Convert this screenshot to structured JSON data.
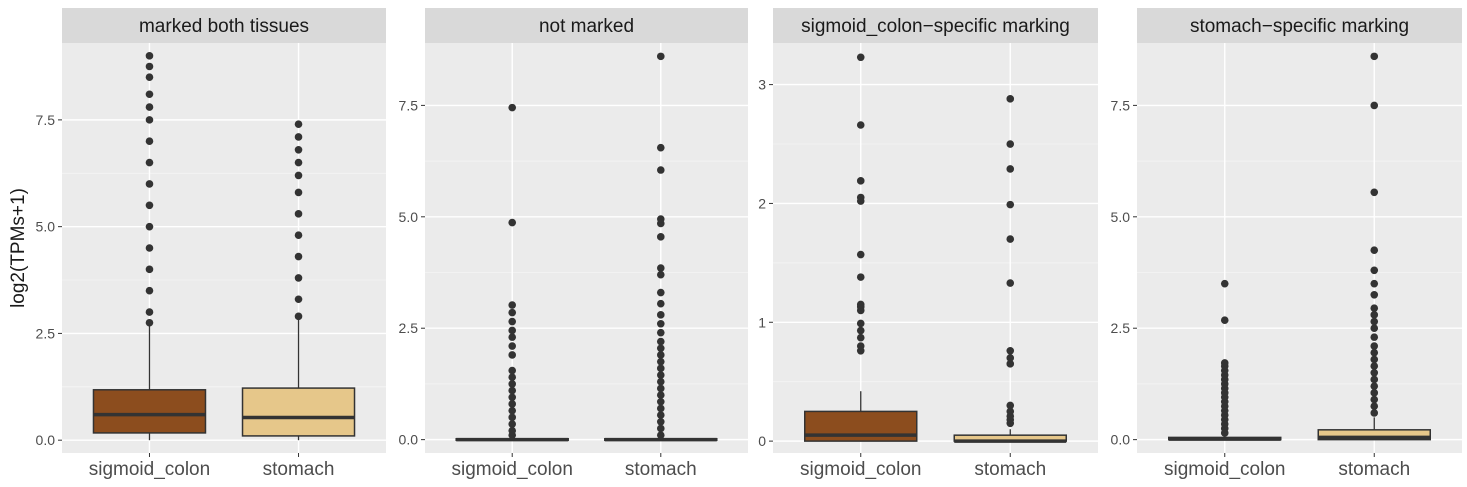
{
  "chart_data": {
    "type": "boxplot",
    "ylabel": "log2(TPMs+1)",
    "categories": [
      "sigmoid_colon",
      "stomach"
    ],
    "colors": {
      "sigmoid_colon": "#8c4d1e",
      "stomach": "#e6c78a"
    },
    "facets": [
      {
        "title": "marked both tissues",
        "ylim": [
          -0.3,
          9.3
        ],
        "ticks": [
          {
            "v": 0,
            "label": "0.0"
          },
          {
            "v": 2.5,
            "label": "2.5"
          },
          {
            "v": 5,
            "label": "5.0"
          },
          {
            "v": 7.5,
            "label": "7.5"
          }
        ],
        "boxes": [
          {
            "category": "sigmoid_colon",
            "q1": 0.17,
            "median": 0.6,
            "q3": 1.18,
            "whisker_low": 0,
            "whisker_high": 2.7,
            "outliers": [
              2.75,
              3.0,
              3.5,
              4.0,
              4.5,
              5.0,
              5.5,
              6.0,
              6.5,
              7.0,
              7.5,
              7.8,
              8.1,
              8.5,
              8.75,
              9.0
            ]
          },
          {
            "category": "stomach",
            "q1": 0.1,
            "median": 0.53,
            "q3": 1.22,
            "whisker_low": 0,
            "whisker_high": 2.85,
            "outliers": [
              2.9,
              3.3,
              3.8,
              4.3,
              4.8,
              5.3,
              5.8,
              6.2,
              6.5,
              6.8,
              7.1,
              7.4
            ]
          }
        ]
      },
      {
        "title": "not marked",
        "ylim": [
          -0.3,
          8.9
        ],
        "ticks": [
          {
            "v": 0,
            "label": "0.0"
          },
          {
            "v": 2.5,
            "label": "2.5"
          },
          {
            "v": 5,
            "label": "5.0"
          },
          {
            "v": 7.5,
            "label": "7.5"
          }
        ],
        "boxes": [
          {
            "category": "sigmoid_colon",
            "q1": 0,
            "median": 0,
            "q3": 0.02,
            "whisker_low": 0,
            "whisker_high": 0.04,
            "outliers": [
              0.1,
              0.2,
              0.35,
              0.5,
              0.65,
              0.8,
              0.95,
              1.1,
              1.25,
              1.4,
              1.55,
              1.9,
              2.1,
              2.3,
              2.45,
              2.65,
              2.85,
              3.02,
              4.87,
              7.45
            ]
          },
          {
            "category": "stomach",
            "q1": 0,
            "median": 0,
            "q3": 0.02,
            "whisker_low": 0,
            "whisker_high": 0.04,
            "outliers": [
              0.1,
              0.25,
              0.4,
              0.55,
              0.7,
              0.85,
              1.0,
              1.15,
              1.3,
              1.45,
              1.6,
              1.75,
              1.9,
              2.05,
              2.2,
              2.4,
              2.6,
              2.8,
              3.05,
              3.3,
              3.7,
              3.85,
              4.55,
              4.85,
              4.95,
              6.05,
              6.55,
              8.6
            ]
          }
        ]
      },
      {
        "title": "sigmoid_colon−specific marking",
        "ylim": [
          -0.1,
          3.35
        ],
        "ticks": [
          {
            "v": 0,
            "label": "0"
          },
          {
            "v": 1,
            "label": "1"
          },
          {
            "v": 2,
            "label": "2"
          },
          {
            "v": 3,
            "label": "3"
          }
        ],
        "boxes": [
          {
            "category": "sigmoid_colon",
            "q1": 0,
            "median": 0.05,
            "q3": 0.25,
            "whisker_low": 0,
            "whisker_high": 0.42,
            "outliers": [
              0.76,
              0.8,
              0.87,
              0.93,
              0.99,
              1.1,
              1.13,
              1.15,
              1.38,
              1.57,
              2.02,
              2.05,
              2.19,
              2.66,
              3.23
            ]
          },
          {
            "category": "stomach",
            "q1": 0,
            "median": 0,
            "q3": 0.05,
            "whisker_low": 0,
            "whisker_high": 0.1,
            "outliers": [
              0.15,
              0.18,
              0.21,
              0.25,
              0.3,
              0.65,
              0.7,
              0.76,
              1.33,
              1.7,
              1.99,
              2.29,
              2.5,
              2.88
            ]
          }
        ]
      },
      {
        "title": "stomach−specific marking",
        "ylim": [
          -0.3,
          8.9
        ],
        "ticks": [
          {
            "v": 0,
            "label": "0.0"
          },
          {
            "v": 2.5,
            "label": "2.5"
          },
          {
            "v": 5,
            "label": "5.0"
          },
          {
            "v": 7.5,
            "label": "7.5"
          }
        ],
        "boxes": [
          {
            "category": "sigmoid_colon",
            "q1": 0,
            "median": 0.01,
            "q3": 0.05,
            "whisker_low": 0,
            "whisker_high": 0.1,
            "outliers": [
              0.15,
              0.25,
              0.35,
              0.45,
              0.55,
              0.65,
              0.75,
              0.85,
              0.95,
              1.05,
              1.15,
              1.25,
              1.35,
              1.45,
              1.55,
              1.65,
              1.72,
              2.68,
              3.5
            ]
          },
          {
            "category": "stomach",
            "q1": 0,
            "median": 0.05,
            "q3": 0.22,
            "whisker_low": 0,
            "whisker_high": 0.5,
            "outliers": [
              0.6,
              0.75,
              0.9,
              1.05,
              1.2,
              1.35,
              1.5,
              1.65,
              1.8,
              1.95,
              2.1,
              2.3,
              2.5,
              2.65,
              2.8,
              2.95,
              3.25,
              3.5,
              3.8,
              4.25,
              5.55,
              7.5,
              8.6
            ]
          }
        ]
      }
    ]
  }
}
